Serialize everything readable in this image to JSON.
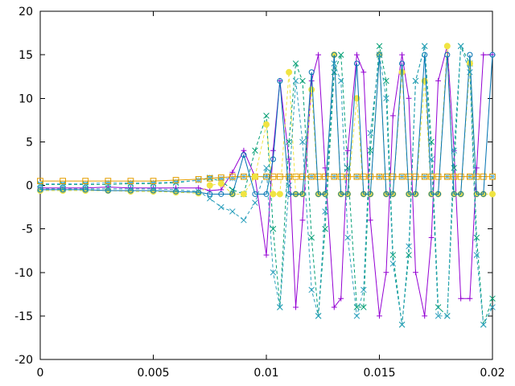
{
  "chart_data": {
    "type": "line",
    "title": "",
    "xlabel": "",
    "ylabel": "",
    "xlim": [
      0,
      0.02
    ],
    "ylim": [
      -20,
      20
    ],
    "x_ticks": [
      0,
      0.005,
      0.01,
      0.015,
      0.02
    ],
    "x_tick_labels": [
      "0",
      "0.005",
      "0.01",
      "0.015",
      "0.02"
    ],
    "y_ticks": [
      -20,
      -15,
      -10,
      -5,
      0,
      5,
      10,
      15,
      20
    ],
    "y_tick_labels": [
      "-20",
      "-15",
      "-10",
      "-5",
      "0",
      "5",
      "10",
      "15",
      "20"
    ],
    "grid": false,
    "legend": "none",
    "series": [
      {
        "color": "#9400d3",
        "marker": "plus",
        "line": "solid",
        "x": [
          0,
          0.001,
          0.002,
          0.003,
          0.004,
          0.005,
          0.006,
          0.007,
          0.0075,
          0.008,
          0.0085,
          0.009,
          0.0095,
          0.01,
          0.0103,
          0.0106,
          0.011,
          0.0113,
          0.0116,
          0.012,
          0.0123,
          0.0126,
          0.013,
          0.0133,
          0.0136,
          0.014,
          0.0143,
          0.0146,
          0.015,
          0.0153,
          0.0156,
          0.016,
          0.0163,
          0.0166,
          0.017,
          0.0173,
          0.0176,
          0.018,
          0.0183,
          0.0186,
          0.019,
          0.0193,
          0.0196,
          0.02
        ],
        "y": [
          -0.3,
          -0.3,
          -0.3,
          -0.2,
          -0.3,
          -0.3,
          -0.3,
          -0.3,
          -0.6,
          -0.5,
          1.5,
          4,
          1,
          -8,
          4,
          12,
          3,
          -14,
          -4,
          12,
          15,
          2,
          -14,
          -13,
          4,
          15,
          13,
          -4,
          -15,
          -10,
          8,
          15,
          10,
          -10,
          -15,
          -6,
          12,
          16,
          4,
          -13,
          -13,
          2,
          15,
          15
        ]
      },
      {
        "color": "#009e73",
        "marker": "cross",
        "line": "dashed",
        "x": [
          0,
          0.001,
          0.002,
          0.003,
          0.004,
          0.005,
          0.006,
          0.007,
          0.0075,
          0.008,
          0.0085,
          0.009,
          0.0095,
          0.01,
          0.0103,
          0.0106,
          0.011,
          0.0113,
          0.0116,
          0.012,
          0.0123,
          0.0126,
          0.013,
          0.0133,
          0.0136,
          0.014,
          0.0143,
          0.0146,
          0.015,
          0.0153,
          0.0156,
          0.016,
          0.0163,
          0.0166,
          0.017,
          0.0173,
          0.0176,
          0.018,
          0.0183,
          0.0186,
          0.019,
          0.0193,
          0.0196,
          0.02
        ],
        "y": [
          0.1,
          0.1,
          0.1,
          0.1,
          0.2,
          0.2,
          0.3,
          0.6,
          0.8,
          0.5,
          -0.5,
          -1,
          4,
          8,
          -5,
          -14,
          5,
          14,
          12,
          -6,
          -15,
          -5,
          13,
          15,
          2,
          -14,
          -14,
          4,
          16,
          12,
          -8,
          -16,
          -8,
          12,
          16,
          5,
          -14,
          -15,
          2,
          16,
          14,
          -6,
          -16,
          -13
        ]
      },
      {
        "color": "#56b4e9",
        "marker": "asterisk",
        "line": "dashed",
        "x": [
          0,
          0.001,
          0.002,
          0.003,
          0.004,
          0.005,
          0.006,
          0.007,
          0.0075,
          0.008,
          0.0085,
          0.009,
          0.0095,
          0.01,
          0.011,
          0.012,
          0.013,
          0.014,
          0.015,
          0.016,
          0.017,
          0.018,
          0.019,
          0.02
        ],
        "y": [
          0.2,
          0.2,
          0.2,
          0.3,
          0.3,
          0.3,
          0.4,
          0.6,
          0.9,
          0.8,
          0.8,
          1,
          1,
          1,
          1,
          1,
          1,
          1,
          1,
          1,
          1,
          1,
          1,
          1
        ]
      },
      {
        "color": "#e69f00",
        "marker": "square",
        "line": "solid",
        "x": [
          0,
          0.001,
          0.002,
          0.003,
          0.004,
          0.005,
          0.006,
          0.007,
          0.0075,
          0.008,
          0.0085,
          0.009,
          0.0095,
          0.01,
          0.0103,
          0.0106,
          0.011,
          0.0113,
          0.0116,
          0.012,
          0.0123,
          0.0126,
          0.013,
          0.0133,
          0.0136,
          0.014,
          0.0143,
          0.0146,
          0.015,
          0.0153,
          0.0156,
          0.016,
          0.0163,
          0.0166,
          0.017,
          0.0173,
          0.0176,
          0.018,
          0.0183,
          0.0186,
          0.019,
          0.0193,
          0.0196,
          0.02
        ],
        "y": [
          0.5,
          0.5,
          0.5,
          0.5,
          0.5,
          0.5,
          0.6,
          0.7,
          0.8,
          0.9,
          1,
          1,
          1,
          1,
          1,
          1,
          1,
          1,
          1,
          1,
          1,
          1,
          1,
          1,
          1,
          1,
          1,
          1,
          1,
          1,
          1,
          1,
          1,
          1,
          1,
          1,
          1,
          1,
          1,
          1,
          1,
          1,
          1,
          1
        ]
      },
      {
        "color": "#f0e442",
        "marker": "filled-circle",
        "line": "dashed",
        "x": [
          0,
          0.001,
          0.002,
          0.003,
          0.004,
          0.005,
          0.006,
          0.007,
          0.0075,
          0.008,
          0.0085,
          0.009,
          0.0095,
          0.01,
          0.0103,
          0.0106,
          0.011,
          0.0113,
          0.0116,
          0.012,
          0.0123,
          0.0126,
          0.013,
          0.0133,
          0.0136,
          0.014,
          0.0143,
          0.0146,
          0.015,
          0.0153,
          0.0156,
          0.016,
          0.0163,
          0.0166,
          0.017,
          0.0173,
          0.0176,
          0.018,
          0.0183,
          0.0186,
          0.019,
          0.0193,
          0.0196,
          0.02
        ],
        "y": [
          -0.6,
          -0.6,
          -0.6,
          -0.6,
          -0.7,
          -0.7,
          -0.8,
          -0.9,
          0,
          0.2,
          -1,
          -1,
          1,
          7,
          -1,
          -1,
          13,
          -1,
          -1,
          11,
          -1,
          -1,
          15,
          -1,
          -1,
          10,
          -1,
          -1,
          15,
          -1,
          -1,
          13,
          -1,
          -1,
          12,
          -1,
          -1,
          16,
          -1,
          -1,
          14,
          -1,
          -1,
          -1
        ]
      },
      {
        "color": "#0072b2",
        "marker": "circle",
        "line": "solid",
        "x": [
          0,
          0.001,
          0.002,
          0.003,
          0.004,
          0.005,
          0.006,
          0.007,
          0.0075,
          0.008,
          0.0085,
          0.009,
          0.0095,
          0.01,
          0.0103,
          0.0106,
          0.011,
          0.0113,
          0.0116,
          0.012,
          0.0123,
          0.0126,
          0.013,
          0.0133,
          0.0136,
          0.014,
          0.0143,
          0.0146,
          0.015,
          0.0153,
          0.0156,
          0.016,
          0.0163,
          0.0166,
          0.017,
          0.0173,
          0.0176,
          0.018,
          0.0183,
          0.0186,
          0.019,
          0.0193,
          0.0196,
          0.02
        ],
        "y": [
          -0.5,
          -0.5,
          -0.5,
          -0.6,
          -0.6,
          -0.6,
          -0.7,
          -0.8,
          -1,
          -1,
          -1,
          3.5,
          -1,
          -1,
          3,
          12,
          -1,
          -1,
          -1,
          13,
          -1,
          -1,
          15,
          -1,
          -1,
          14,
          -1,
          -1,
          15,
          -1,
          -1,
          14,
          -1,
          -1,
          15,
          -1,
          -1,
          15,
          -1,
          -1,
          15,
          -1,
          -1,
          15
        ]
      },
      {
        "color": "#2a9fbc",
        "marker": "cross",
        "line": "dashed",
        "x": [
          0,
          0.001,
          0.002,
          0.003,
          0.004,
          0.005,
          0.006,
          0.007,
          0.0075,
          0.008,
          0.0085,
          0.009,
          0.0095,
          0.01,
          0.0103,
          0.0106,
          0.011,
          0.0113,
          0.0116,
          0.012,
          0.0123,
          0.0126,
          0.013,
          0.0133,
          0.0136,
          0.014,
          0.0143,
          0.0146,
          0.015,
          0.0153,
          0.0156,
          0.016,
          0.0163,
          0.0166,
          0.017,
          0.0173,
          0.0176,
          0.018,
          0.0183,
          0.0186,
          0.019,
          0.0193,
          0.0196,
          0.02
        ],
        "y": [
          -0.4,
          -0.4,
          -0.4,
          -0.4,
          -0.4,
          -0.4,
          -0.5,
          -0.7,
          -1.5,
          -2.5,
          -3,
          -4,
          -2,
          2,
          -10,
          -14,
          0,
          12,
          5,
          -12,
          -15,
          -3,
          14,
          12,
          -6,
          -15,
          -12,
          6,
          15,
          10,
          -9,
          -16,
          -7,
          12,
          16,
          3,
          -15,
          -15,
          4,
          16,
          13,
          -8,
          -16,
          -14
        ]
      }
    ]
  }
}
